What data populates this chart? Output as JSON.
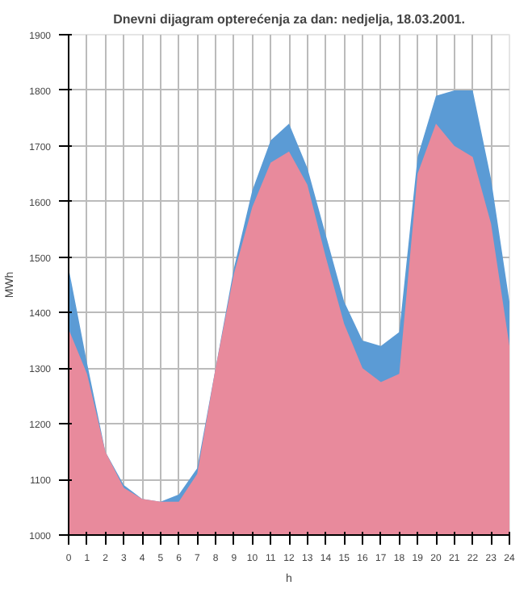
{
  "chart_data": {
    "type": "area",
    "title": "Dnevni dijagram opterećenja za dan: nedjelja, 18.03.2001.",
    "xlabel": "h",
    "ylabel": "MWh",
    "x": [
      0,
      1,
      2,
      3,
      4,
      5,
      6,
      7,
      8,
      9,
      10,
      11,
      12,
      13,
      14,
      15,
      16,
      17,
      18,
      19,
      20,
      21,
      22,
      23,
      24
    ],
    "series": [
      {
        "color": "#5b9bd5",
        "values": [
          1480,
          1310,
          1150,
          1090,
          1065,
          1060,
          1073,
          1120,
          1300,
          1480,
          1620,
          1710,
          1740,
          1660,
          1540,
          1420,
          1350,
          1340,
          1365,
          1680,
          1790,
          1800,
          1800,
          1640,
          1420
        ]
      },
      {
        "color": "#e88a9c",
        "values": [
          1370,
          1290,
          1150,
          1085,
          1065,
          1060,
          1060,
          1110,
          1300,
          1470,
          1590,
          1670,
          1690,
          1630,
          1500,
          1380,
          1300,
          1275,
          1290,
          1650,
          1740,
          1700,
          1680,
          1560,
          1340
        ]
      }
    ],
    "xlim": [
      0,
      24
    ],
    "xticks": [
      0,
      1,
      2,
      3,
      4,
      5,
      6,
      7,
      8,
      9,
      10,
      11,
      12,
      13,
      14,
      15,
      16,
      17,
      18,
      19,
      20,
      21,
      22,
      23,
      24
    ],
    "ylim": [
      1000,
      1900
    ],
    "yticks": [
      1000,
      1100,
      1200,
      1300,
      1400,
      1500,
      1600,
      1700,
      1800,
      1900
    ],
    "grid": true
  }
}
